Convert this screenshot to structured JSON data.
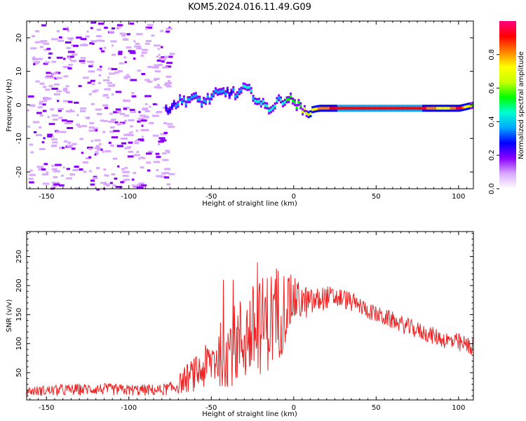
{
  "title": "KOM5.2024.016.11.49.G09",
  "chart_data": [
    {
      "type": "heatmap",
      "xlabel": "Height of straight line (km)",
      "ylabel": "Frequency (Hz)",
      "xlim": [
        -162,
        109
      ],
      "ylim": [
        -25,
        25
      ],
      "x_ticks": [
        -150,
        -100,
        -50,
        0,
        50,
        100
      ],
      "y_ticks": [
        -20,
        -10,
        0,
        10,
        20
      ],
      "colorbar": {
        "label": "Normalized spectral amplitude",
        "range": [
          0,
          1
        ],
        "ticks": [
          "0.0",
          "0.2",
          "0.4",
          "0.6",
          "0.8"
        ],
        "tick_values": [
          0.0,
          0.2,
          0.4,
          0.6,
          0.8
        ],
        "colormap": [
          "#ffffff",
          "#d9a8ff",
          "#8a00ff",
          "#0000ff",
          "#00a8ff",
          "#00ffd0",
          "#00ff00",
          "#c8ff00",
          "#ffff00",
          "#ff8000",
          "#ff0000",
          "#ff0080"
        ]
      },
      "ridge": {
        "x": [
          -78,
          -70,
          -62,
          -55,
          -48,
          -40,
          -35,
          -30,
          -25,
          -20,
          -15,
          -10,
          -5,
          0,
          5,
          15,
          30,
          50,
          75,
          90,
          100,
          109
        ],
        "freq": [
          -1,
          1,
          2,
          1,
          3,
          4,
          3,
          5,
          3,
          0,
          -1,
          1,
          2,
          1,
          -2,
          -1,
          -1,
          -1,
          -1,
          -1,
          -1,
          0
        ],
        "amp": [
          0.25,
          0.35,
          0.4,
          0.35,
          0.4,
          0.3,
          0.35,
          0.45,
          0.4,
          0.45,
          0.5,
          0.4,
          0.5,
          0.55,
          0.6,
          0.8,
          0.95,
          0.95,
          0.95,
          0.7,
          0.9,
          0.5
        ]
      },
      "noise_region_x": [
        -162,
        -75
      ]
    },
    {
      "type": "line",
      "xlabel": "Height of straight line (km)",
      "ylabel": "SNR (v/v)",
      "xlim": [
        -162,
        109
      ],
      "ylim": [
        3,
        293
      ],
      "x_ticks": [
        -150,
        -100,
        -50,
        0,
        50,
        100
      ],
      "y_ticks": [
        50,
        100,
        150,
        200,
        250
      ],
      "color": "#ee2222",
      "envelope": {
        "x": [
          -162,
          -140,
          -120,
          -100,
          -80,
          -72,
          -65,
          -55,
          -48,
          -40,
          -30,
          -20,
          -10,
          0,
          10,
          20,
          30,
          40,
          50,
          60,
          70,
          80,
          90,
          100,
          109
        ],
        "mean": [
          18,
          20,
          22,
          20,
          20,
          25,
          40,
          55,
          75,
          90,
          110,
          130,
          150,
          175,
          170,
          180,
          178,
          165,
          150,
          140,
          128,
          118,
          108,
          100,
          95
        ],
        "spread": [
          8,
          10,
          10,
          10,
          10,
          12,
          25,
          35,
          50,
          65,
          80,
          85,
          90,
          40,
          25,
          20,
          18,
          15,
          15,
          15,
          15,
          15,
          15,
          18,
          15
        ]
      }
    }
  ]
}
